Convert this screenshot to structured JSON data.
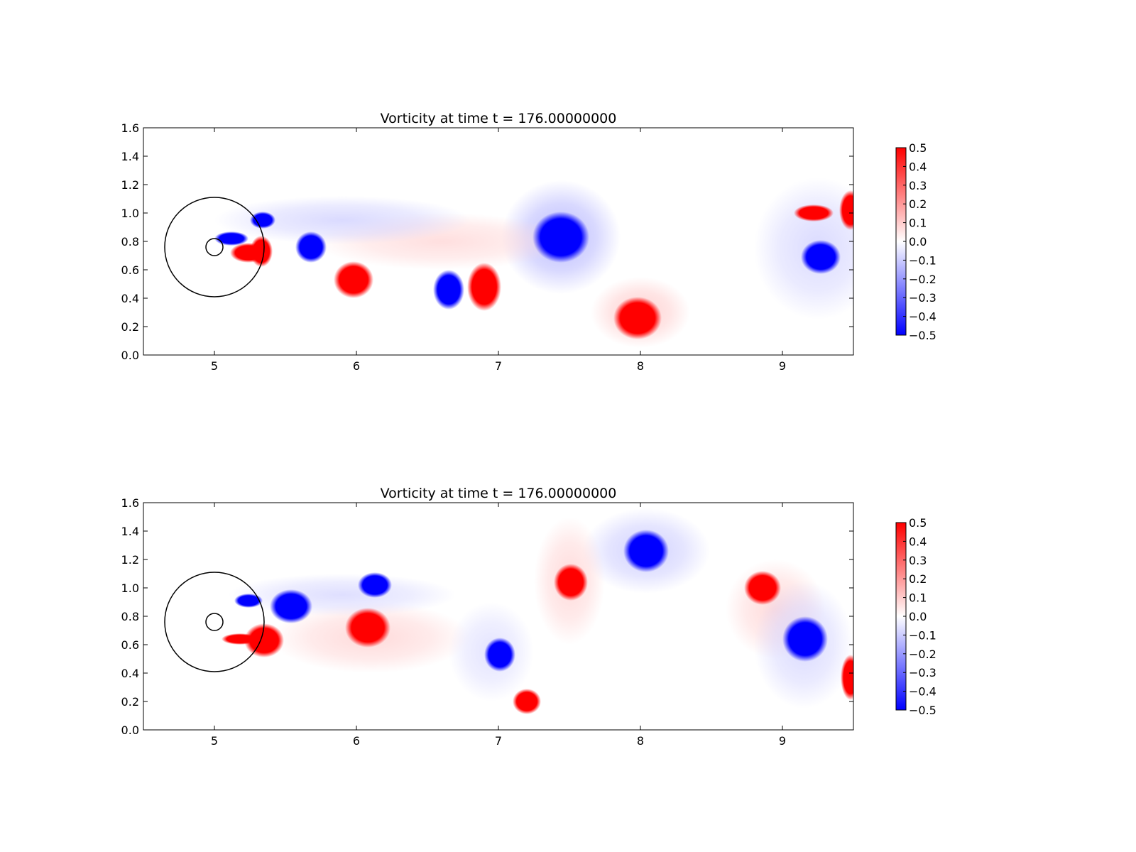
{
  "figure": {
    "background": "#ffffff"
  },
  "chart_data": [
    {
      "type": "heatmap",
      "title": "Vorticity at time t =   176.00000000",
      "xlabel": "",
      "ylabel": "",
      "xlim": [
        4.5,
        9.5
      ],
      "ylim": [
        0.0,
        1.6
      ],
      "xticks": [
        "5",
        "6",
        "7",
        "8",
        "9"
      ],
      "xtick_values": [
        5,
        6,
        7,
        8,
        9
      ],
      "yticks": [
        "0.0",
        "0.2",
        "0.4",
        "0.6",
        "0.8",
        "1.0",
        "1.2",
        "1.4",
        "1.6"
      ],
      "ytick_values": [
        0.0,
        0.2,
        0.4,
        0.6,
        0.8,
        1.0,
        1.2,
        1.4,
        1.6
      ],
      "grid": false,
      "colormap": {
        "low": "#0000ff",
        "mid": "#ffffff",
        "high": "#ff0000"
      },
      "colorbar": {
        "range": [
          -0.5,
          0.5
        ],
        "ticks": [
          "0.5",
          "0.4",
          "0.3",
          "0.2",
          "0.1",
          "0.0",
          "−0.1",
          "−0.2",
          "−0.3",
          "−0.4",
          "−0.5"
        ],
        "tick_values": [
          0.5,
          0.4,
          0.3,
          0.2,
          0.1,
          0.0,
          -0.1,
          -0.2,
          -0.3,
          -0.4,
          -0.5
        ]
      },
      "circles": [
        {
          "cx": 5.0,
          "cy": 0.76,
          "r": 0.35
        },
        {
          "cx": 5.0,
          "cy": 0.76,
          "r": 0.06
        }
      ],
      "vortices": [
        {
          "x": 5.34,
          "y": 0.95,
          "rx": 0.09,
          "ry": 0.06,
          "w": -0.5
        },
        {
          "x": 5.68,
          "y": 0.76,
          "rx": 0.11,
          "ry": 0.11,
          "w": -0.5
        },
        {
          "x": 5.98,
          "y": 0.53,
          "rx": 0.14,
          "ry": 0.13,
          "w": 0.5
        },
        {
          "x": 6.65,
          "y": 0.46,
          "rx": 0.11,
          "ry": 0.14,
          "w": -0.5
        },
        {
          "x": 6.9,
          "y": 0.48,
          "rx": 0.12,
          "ry": 0.17,
          "w": 0.5
        },
        {
          "x": 7.44,
          "y": 0.83,
          "rx": 0.2,
          "ry": 0.18,
          "w": -0.5
        },
        {
          "x": 7.98,
          "y": 0.26,
          "rx": 0.17,
          "ry": 0.15,
          "w": 0.5
        },
        {
          "x": 9.22,
          "y": 1.0,
          "rx": 0.14,
          "ry": 0.06,
          "w": 0.5
        },
        {
          "x": 9.48,
          "y": 1.02,
          "rx": 0.08,
          "ry": 0.14,
          "w": 0.5
        },
        {
          "x": 9.27,
          "y": 0.69,
          "rx": 0.14,
          "ry": 0.12,
          "w": -0.5
        },
        {
          "x": 5.12,
          "y": 0.82,
          "rx": 0.12,
          "ry": 0.05,
          "w": -0.5
        },
        {
          "x": 5.24,
          "y": 0.72,
          "rx": 0.13,
          "ry": 0.07,
          "w": 0.5
        },
        {
          "x": 5.33,
          "y": 0.73,
          "rx": 0.08,
          "ry": 0.11,
          "w": 0.5
        }
      ],
      "halos": [
        {
          "x": 7.44,
          "y": 0.83,
          "rx": 0.42,
          "ry": 0.4,
          "w": -0.15
        },
        {
          "x": 6.6,
          "y": 0.8,
          "rx": 0.9,
          "ry": 0.2,
          "w": 0.07
        },
        {
          "x": 5.9,
          "y": 0.95,
          "rx": 0.9,
          "ry": 0.17,
          "w": -0.08
        },
        {
          "x": 9.25,
          "y": 0.75,
          "rx": 0.45,
          "ry": 0.5,
          "w": -0.08
        },
        {
          "x": 8.0,
          "y": 0.3,
          "rx": 0.35,
          "ry": 0.25,
          "w": 0.1
        }
      ]
    },
    {
      "type": "heatmap",
      "title": "Vorticity at time t =   176.00000000",
      "xlabel": "",
      "ylabel": "",
      "xlim": [
        4.5,
        9.5
      ],
      "ylim": [
        0.0,
        1.6
      ],
      "xticks": [
        "5",
        "6",
        "7",
        "8",
        "9"
      ],
      "xtick_values": [
        5,
        6,
        7,
        8,
        9
      ],
      "yticks": [
        "0.0",
        "0.2",
        "0.4",
        "0.6",
        "0.8",
        "1.0",
        "1.2",
        "1.4",
        "1.6"
      ],
      "ytick_values": [
        0.0,
        0.2,
        0.4,
        0.6,
        0.8,
        1.0,
        1.2,
        1.4,
        1.6
      ],
      "grid": false,
      "colormap": {
        "low": "#0000ff",
        "mid": "#ffffff",
        "high": "#ff0000"
      },
      "colorbar": {
        "range": [
          -0.5,
          0.5
        ],
        "ticks": [
          "0.5",
          "0.4",
          "0.3",
          "0.2",
          "0.1",
          "0.0",
          "−0.1",
          "−0.2",
          "−0.3",
          "−0.4",
          "−0.5"
        ],
        "tick_values": [
          0.5,
          0.4,
          0.3,
          0.2,
          0.1,
          0.0,
          -0.1,
          -0.2,
          -0.3,
          -0.4,
          -0.5
        ]
      },
      "circles": [
        {
          "cx": 5.0,
          "cy": 0.76,
          "r": 0.35
        },
        {
          "cx": 5.0,
          "cy": 0.76,
          "r": 0.06
        }
      ],
      "vortices": [
        {
          "x": 5.24,
          "y": 0.91,
          "rx": 0.1,
          "ry": 0.05,
          "w": -0.5
        },
        {
          "x": 5.54,
          "y": 0.87,
          "rx": 0.15,
          "ry": 0.12,
          "w": -0.5
        },
        {
          "x": 5.35,
          "y": 0.63,
          "rx": 0.14,
          "ry": 0.12,
          "w": 0.5
        },
        {
          "x": 6.13,
          "y": 1.02,
          "rx": 0.12,
          "ry": 0.09,
          "w": -0.5
        },
        {
          "x": 6.08,
          "y": 0.72,
          "rx": 0.16,
          "ry": 0.14,
          "w": 0.5
        },
        {
          "x": 7.01,
          "y": 0.53,
          "rx": 0.11,
          "ry": 0.12,
          "w": -0.5
        },
        {
          "x": 7.2,
          "y": 0.2,
          "rx": 0.1,
          "ry": 0.09,
          "w": 0.5
        },
        {
          "x": 7.51,
          "y": 1.04,
          "rx": 0.12,
          "ry": 0.13,
          "w": 0.5
        },
        {
          "x": 8.04,
          "y": 1.26,
          "rx": 0.16,
          "ry": 0.15,
          "w": -0.5
        },
        {
          "x": 8.86,
          "y": 1.0,
          "rx": 0.13,
          "ry": 0.12,
          "w": 0.5
        },
        {
          "x": 9.16,
          "y": 0.64,
          "rx": 0.16,
          "ry": 0.16,
          "w": -0.5
        },
        {
          "x": 9.48,
          "y": 0.37,
          "rx": 0.07,
          "ry": 0.16,
          "w": 0.5
        },
        {
          "x": 5.18,
          "y": 0.64,
          "rx": 0.13,
          "ry": 0.04,
          "w": 0.5
        }
      ],
      "halos": [
        {
          "x": 8.04,
          "y": 1.26,
          "rx": 0.45,
          "ry": 0.3,
          "w": -0.1
        },
        {
          "x": 7.5,
          "y": 1.05,
          "rx": 0.25,
          "ry": 0.45,
          "w": 0.08
        },
        {
          "x": 8.95,
          "y": 0.85,
          "rx": 0.35,
          "ry": 0.35,
          "w": 0.08
        },
        {
          "x": 9.15,
          "y": 0.6,
          "rx": 0.35,
          "ry": 0.45,
          "w": -0.08
        },
        {
          "x": 6.1,
          "y": 0.65,
          "rx": 0.7,
          "ry": 0.25,
          "w": 0.08
        },
        {
          "x": 5.9,
          "y": 0.95,
          "rx": 0.8,
          "ry": 0.15,
          "w": -0.07
        },
        {
          "x": 6.95,
          "y": 0.55,
          "rx": 0.3,
          "ry": 0.35,
          "w": -0.06
        }
      ]
    }
  ]
}
